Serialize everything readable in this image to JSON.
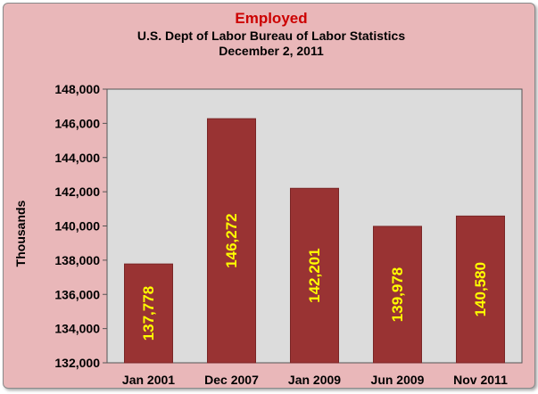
{
  "chart_data": {
    "type": "bar",
    "title": "Employed",
    "subtitle": [
      "U.S. Dept of Labor Bureau of Labor Statistics",
      "December 2, 2011"
    ],
    "ylabel": "Thousands",
    "xlabel": "",
    "categories": [
      "Jan 2001",
      "Dec 2007",
      "Jan 2009",
      "Jun 2009",
      "Nov 2011"
    ],
    "values": [
      137778,
      146272,
      142201,
      139978,
      140580
    ],
    "data_labels": [
      "137,778",
      "146,272",
      "142,201",
      "139,978",
      "140,580"
    ],
    "ylim": [
      132000,
      148000
    ],
    "yticks": [
      132000,
      134000,
      136000,
      138000,
      140000,
      142000,
      144000,
      146000,
      148000
    ],
    "ytick_labels": [
      "132,000",
      "134,000",
      "136,000",
      "138,000",
      "140,000",
      "142,000",
      "144,000",
      "146,000",
      "148,000"
    ],
    "grid": false,
    "legend": "none",
    "colors": {
      "bar": "#993333",
      "bar_edge": "#7a2626",
      "plot_background": "#dcdcdc",
      "chart_background": "#e9b7b9",
      "title": "#cc0000",
      "data_label": "#ffff00"
    }
  }
}
